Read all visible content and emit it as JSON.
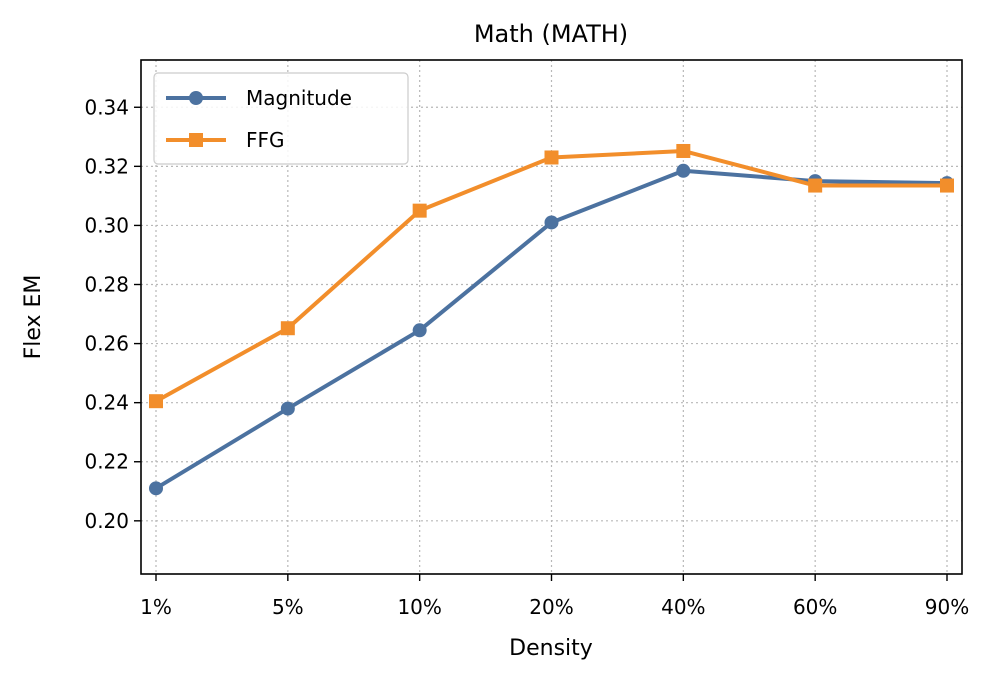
{
  "chart_data": {
    "type": "line",
    "title": "Math (MATH)",
    "xlabel": "Density",
    "ylabel": "Flex EM",
    "categories": [
      "1%",
      "5%",
      "10%",
      "20%",
      "40%",
      "60%",
      "90%"
    ],
    "ylim": [
      0.182,
      0.356
    ],
    "yticks": [
      0.2,
      0.22,
      0.24,
      0.26,
      0.28,
      0.3,
      0.32,
      0.34
    ],
    "ytick_labels": [
      "0.20",
      "0.22",
      "0.24",
      "0.26",
      "0.28",
      "0.30",
      "0.32",
      "0.34"
    ],
    "grid": true,
    "legend_position": "top-left",
    "series": [
      {
        "name": "Magnitude",
        "color": "#4c72a0",
        "marker": "circle",
        "values": [
          0.211,
          0.238,
          0.2645,
          0.301,
          0.3185,
          0.315,
          0.3143
        ]
      },
      {
        "name": "FFG",
        "color": "#f28e2b",
        "marker": "square",
        "values": [
          0.2405,
          0.2652,
          0.305,
          0.323,
          0.3252,
          0.3135,
          0.3135
        ]
      }
    ]
  }
}
